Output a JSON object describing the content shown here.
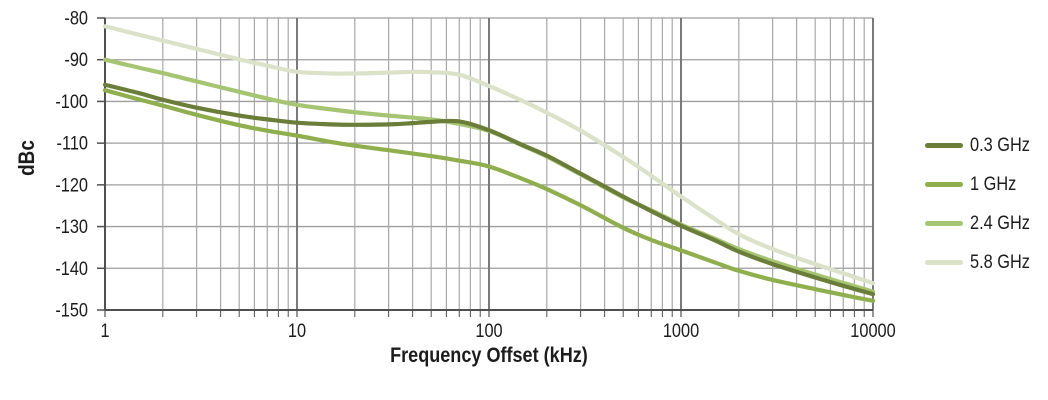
{
  "page": {
    "background": "#ffffff"
  },
  "chart_data": {
    "type": "line",
    "title": "",
    "xlabel": "Frequency Offset (kHz)",
    "ylabel": "dBc",
    "x_axis": {
      "scale": "log",
      "min": 1,
      "max": 10000,
      "minor_gridlines": true,
      "ticks": [
        {
          "value": 1,
          "label": "1"
        },
        {
          "value": 10,
          "label": "10"
        },
        {
          "value": 100,
          "label": "100"
        },
        {
          "value": 1000,
          "label": "1000"
        },
        {
          "value": 10000,
          "label": "10000"
        }
      ]
    },
    "y_axis": {
      "scale": "linear",
      "min": -150,
      "max": -80,
      "tick_step": 10,
      "ticks": [
        {
          "value": -80,
          "label": "-80"
        },
        {
          "value": -90,
          "label": "-90"
        },
        {
          "value": -100,
          "label": "-100"
        },
        {
          "value": -110,
          "label": "-110"
        },
        {
          "value": -120,
          "label": "-120"
        },
        {
          "value": -130,
          "label": "-130"
        },
        {
          "value": -140,
          "label": "-140"
        },
        {
          "value": -150,
          "label": "-150"
        }
      ]
    },
    "grid": {
      "minor_color": "#a8a8a8",
      "major_color": "#7a7a7a",
      "horizontal_color": "#9d9d9d",
      "axis_color": "#4f4f4f"
    },
    "legend_position": "right",
    "series": [
      {
        "name": "0.3 GHz",
        "color": "#6a7d39",
        "points": [
          [
            1,
            -96
          ],
          [
            1.5,
            -98
          ],
          [
            2,
            -99.6
          ],
          [
            3,
            -101.5
          ],
          [
            5,
            -103.4
          ],
          [
            7,
            -104.3
          ],
          [
            10,
            -105.1
          ],
          [
            15,
            -105.5
          ],
          [
            20,
            -105.6
          ],
          [
            30,
            -105.5
          ],
          [
            40,
            -105.2
          ],
          [
            50,
            -104.9
          ],
          [
            70,
            -104.8
          ],
          [
            100,
            -106.9
          ],
          [
            150,
            -110.5
          ],
          [
            200,
            -113
          ],
          [
            300,
            -117.3
          ],
          [
            500,
            -122.8
          ],
          [
            700,
            -126.3
          ],
          [
            1000,
            -129.8
          ],
          [
            1500,
            -133.3
          ],
          [
            2000,
            -136
          ],
          [
            3000,
            -139
          ],
          [
            5000,
            -142.2
          ],
          [
            7000,
            -144.2
          ],
          [
            10000,
            -146.2
          ]
        ]
      },
      {
        "name": "1 GHz",
        "color": "#8fae4d",
        "points": [
          [
            1,
            -97.3
          ],
          [
            1.5,
            -99.5
          ],
          [
            2,
            -101
          ],
          [
            3,
            -103.2
          ],
          [
            5,
            -105.7
          ],
          [
            7,
            -107
          ],
          [
            10,
            -108.2
          ],
          [
            15,
            -109.7
          ],
          [
            20,
            -110.6
          ],
          [
            30,
            -111.7
          ],
          [
            50,
            -113.1
          ],
          [
            70,
            -114.2
          ],
          [
            100,
            -115.6
          ],
          [
            150,
            -118.6
          ],
          [
            200,
            -121
          ],
          [
            300,
            -124.9
          ],
          [
            500,
            -130.3
          ],
          [
            700,
            -133.2
          ],
          [
            1000,
            -135.7
          ],
          [
            1500,
            -138.6
          ],
          [
            2000,
            -140.6
          ],
          [
            3000,
            -142.8
          ],
          [
            5000,
            -145
          ],
          [
            7000,
            -146.4
          ],
          [
            10000,
            -147.8
          ]
        ]
      },
      {
        "name": "2.4 GHz",
        "color": "#a6c573",
        "points": [
          [
            1,
            -90
          ],
          [
            1.5,
            -91.9
          ],
          [
            2,
            -93.2
          ],
          [
            3,
            -95.2
          ],
          [
            5,
            -97.7
          ],
          [
            7,
            -99.3
          ],
          [
            10,
            -100.8
          ],
          [
            15,
            -101.9
          ],
          [
            20,
            -102.6
          ],
          [
            30,
            -103.4
          ],
          [
            50,
            -104.3
          ],
          [
            70,
            -105.4
          ],
          [
            100,
            -107.1
          ],
          [
            150,
            -110.6
          ],
          [
            200,
            -113.2
          ],
          [
            300,
            -117.5
          ],
          [
            500,
            -123
          ],
          [
            700,
            -126.1
          ],
          [
            1000,
            -129.5
          ],
          [
            1500,
            -132.9
          ],
          [
            2000,
            -135.4
          ],
          [
            3000,
            -138.3
          ],
          [
            5000,
            -141.5
          ],
          [
            7000,
            -143.5
          ],
          [
            10000,
            -145.6
          ]
        ]
      },
      {
        "name": "5.8 GHz",
        "color": "#dbe2c9",
        "points": [
          [
            1,
            -82
          ],
          [
            1.5,
            -84
          ],
          [
            2,
            -85.4
          ],
          [
            3,
            -87.4
          ],
          [
            5,
            -89.9
          ],
          [
            7,
            -91.4
          ],
          [
            10,
            -92.9
          ],
          [
            15,
            -93.3
          ],
          [
            20,
            -93.3
          ],
          [
            30,
            -93.1
          ],
          [
            40,
            -92.9
          ],
          [
            50,
            -93
          ],
          [
            70,
            -93.6
          ],
          [
            100,
            -96.3
          ],
          [
            150,
            -99.9
          ],
          [
            200,
            -102.7
          ],
          [
            300,
            -107
          ],
          [
            500,
            -113.3
          ],
          [
            700,
            -117.8
          ],
          [
            1000,
            -122.8
          ],
          [
            1500,
            -128.2
          ],
          [
            2000,
            -131.8
          ],
          [
            3000,
            -135.4
          ],
          [
            5000,
            -139
          ],
          [
            7000,
            -141.2
          ],
          [
            10000,
            -143.6
          ]
        ]
      }
    ],
    "draw_order": [
      3,
      2,
      1,
      0
    ],
    "line_width": 4.2
  }
}
